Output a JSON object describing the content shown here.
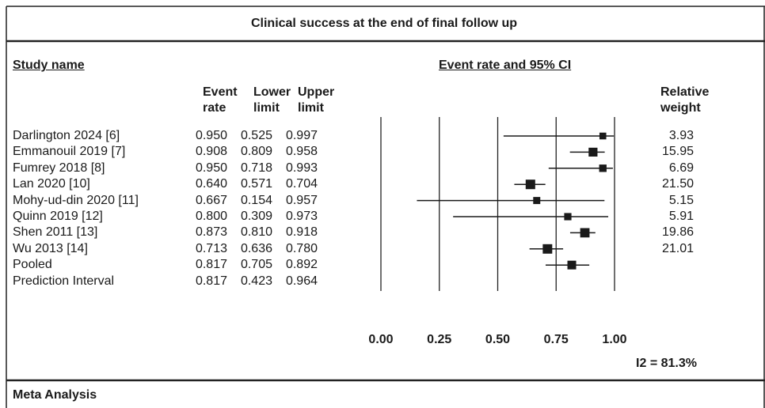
{
  "chart_data": {
    "type": "forest",
    "title": "Clinical success at the end of final follow up",
    "study_header": "Study name",
    "plot_header": "Event rate and 95% CI",
    "categories": [
      "Darlington 2024 [6]",
      "Emmanouil 2019 [7]",
      "Fumrey 2018 [8]",
      "Lan 2020 [10]",
      "Mohy-ud-din 2020 [11]",
      "Quinn 2019 [12]",
      "Shen 2011 [13]",
      "Wu 2013 [14]",
      "Pooled",
      "Prediction Interval"
    ],
    "series": [
      {
        "name": "Event rate",
        "values": [
          0.95,
          0.908,
          0.95,
          0.64,
          0.667,
          0.8,
          0.873,
          0.713,
          0.817,
          0.817
        ],
        "value_labels": [
          "0.950",
          "0.908",
          "0.950",
          "0.640",
          "0.667",
          "0.800",
          "0.873",
          "0.713",
          "0.817",
          "0.817"
        ]
      },
      {
        "name": "Lower limit",
        "values": [
          0.525,
          0.809,
          0.718,
          0.571,
          0.154,
          0.309,
          0.81,
          0.636,
          0.705,
          0.423
        ],
        "value_labels": [
          "0.525",
          "0.809",
          "0.718",
          "0.571",
          "0.154",
          "0.309",
          "0.810",
          "0.636",
          "0.705",
          "0.423"
        ]
      },
      {
        "name": "Upper limit",
        "values": [
          0.997,
          0.958,
          0.993,
          0.704,
          0.957,
          0.973,
          0.918,
          0.78,
          0.892,
          0.964
        ],
        "value_labels": [
          "0.997",
          "0.958",
          "0.993",
          "0.704",
          "0.957",
          "0.973",
          "0.918",
          "0.780",
          "0.892",
          "0.964"
        ]
      }
    ],
    "weights": {
      "name": "Relative weight",
      "values": [
        3.93,
        15.95,
        6.69,
        21.5,
        5.15,
        5.91,
        19.86,
        21.01,
        null,
        null
      ],
      "value_labels": [
        "3.93",
        "15.95",
        "6.69",
        "21.50",
        "5.15",
        "5.91",
        "19.86",
        "21.01",
        null,
        null
      ]
    },
    "xlim": [
      0,
      1
    ],
    "xticks": [
      {
        "value": 0,
        "label": "0.00"
      },
      {
        "value": 0.25,
        "label": "0.25"
      },
      {
        "value": 0.5,
        "label": "0.50"
      },
      {
        "value": 0.75,
        "label": "0.75"
      },
      {
        "value": 1,
        "label": "1.00"
      }
    ],
    "grid": true,
    "color": "#1a1a1a",
    "heterogeneity": "I2 = 81.3%",
    "footer": "Meta Analysis"
  }
}
